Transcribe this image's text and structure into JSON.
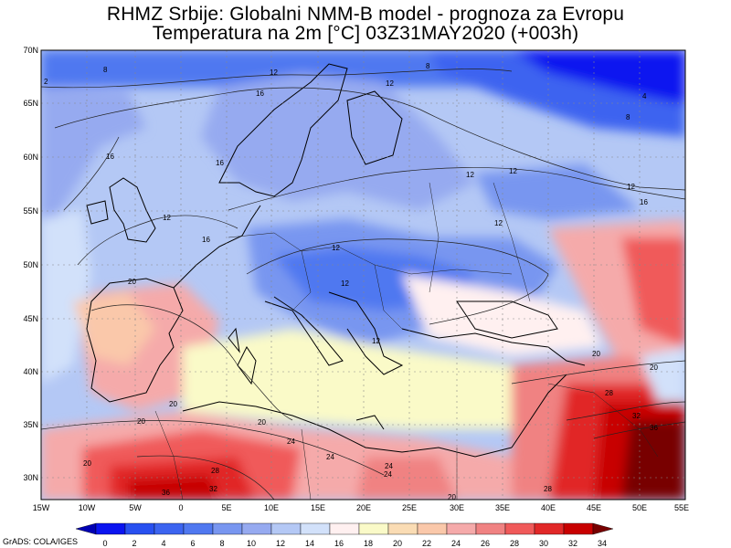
{
  "title": {
    "line1": "RHMZ Srbije: Globalni NMM-B model - prognoza za Evropu",
    "line2": "Temperatura na 2m [°C] 03Z31MAY2020 (+003h)"
  },
  "map": {
    "lat_labels": [
      "70N",
      "65N",
      "60N",
      "55N",
      "50N",
      "45N",
      "40N",
      "35N",
      "30N"
    ],
    "lon_labels": [
      "15W",
      "10W",
      "5W",
      "0",
      "5E",
      "10E",
      "15E",
      "20E",
      "25E",
      "30E",
      "35E",
      "40E",
      "45E",
      "50E",
      "55E"
    ],
    "contour_labels": [
      "2",
      "4",
      "8",
      "8",
      "8",
      "12",
      "12",
      "12",
      "12",
      "12",
      "12",
      "12",
      "12",
      "12",
      "12",
      "16",
      "16",
      "16",
      "16",
      "16",
      "20",
      "20",
      "20",
      "20",
      "20",
      "20",
      "20",
      "20",
      "24",
      "24",
      "24",
      "24",
      "28",
      "28",
      "28",
      "32",
      "32",
      "36",
      "36"
    ]
  },
  "colorbar": {
    "ticks": [
      "0",
      "2",
      "4",
      "6",
      "8",
      "10",
      "12",
      "14",
      "16",
      "18",
      "20",
      "22",
      "24",
      "26",
      "28",
      "30",
      "32",
      "34"
    ],
    "colors": [
      "#0000b4",
      "#0a14f0",
      "#2850f0",
      "#3c64f0",
      "#5078f0",
      "#7896f0",
      "#96aaf0",
      "#b4c8f5",
      "#d2e1fa",
      "#fff0f0",
      "#fafac8",
      "#fadcb4",
      "#fac8aa",
      "#f5aaaa",
      "#f08282",
      "#f05a5a",
      "#e12828",
      "#c80000",
      "#780000"
    ]
  },
  "credit": "GrADS: COLA/IGES"
}
